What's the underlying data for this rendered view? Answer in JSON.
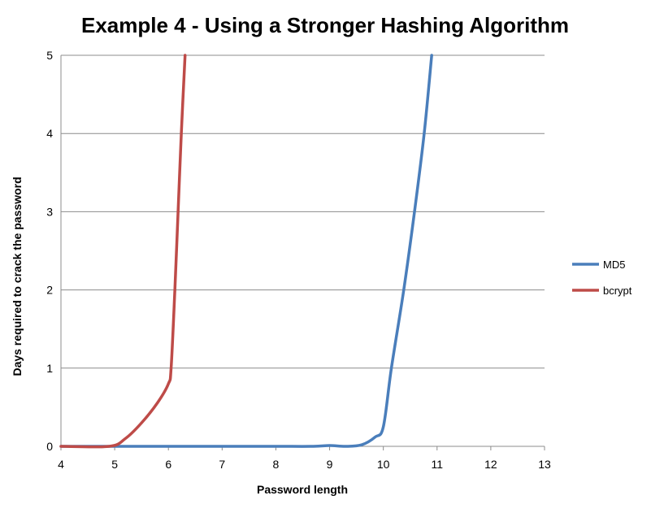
{
  "chart_data": {
    "type": "line",
    "title": "Example 4 - Using a Stronger Hashing Algorithm",
    "xlabel": "Password length",
    "ylabel": "Days required to crack the password",
    "xlim": [
      4,
      13
    ],
    "ylim": [
      0,
      5
    ],
    "xticks": [
      "4",
      "5",
      "6",
      "7",
      "8",
      "9",
      "10",
      "11",
      "12",
      "13"
    ],
    "yticks": [
      "0",
      "1",
      "2",
      "3",
      "4",
      "5"
    ],
    "grid": "horizontal",
    "legend_position": "right",
    "series": [
      {
        "name": "MD5",
        "color": "#4a7ebb",
        "points": [
          [
            4,
            0
          ],
          [
            5,
            0
          ],
          [
            6,
            0
          ],
          [
            7,
            0
          ],
          [
            8,
            0
          ],
          [
            8.7,
            0
          ],
          [
            9,
            0.01
          ],
          [
            9.3,
            0
          ],
          [
            9.6,
            0.02
          ],
          [
            9.85,
            0.12
          ],
          [
            10,
            0.25
          ],
          [
            10.15,
            1
          ],
          [
            10.38,
            2
          ],
          [
            10.58,
            3
          ],
          [
            10.76,
            4
          ],
          [
            10.9,
            5
          ]
        ]
      },
      {
        "name": "bcrypt",
        "color": "#be4b48",
        "points": [
          [
            4,
            0
          ],
          [
            4.9,
            0
          ],
          [
            5.2,
            0.1
          ],
          [
            5.5,
            0.3
          ],
          [
            5.8,
            0.56
          ],
          [
            6,
            0.8
          ],
          [
            6.05,
            1
          ],
          [
            6.12,
            2
          ],
          [
            6.18,
            3
          ],
          [
            6.24,
            4
          ],
          [
            6.31,
            5
          ]
        ]
      }
    ]
  }
}
